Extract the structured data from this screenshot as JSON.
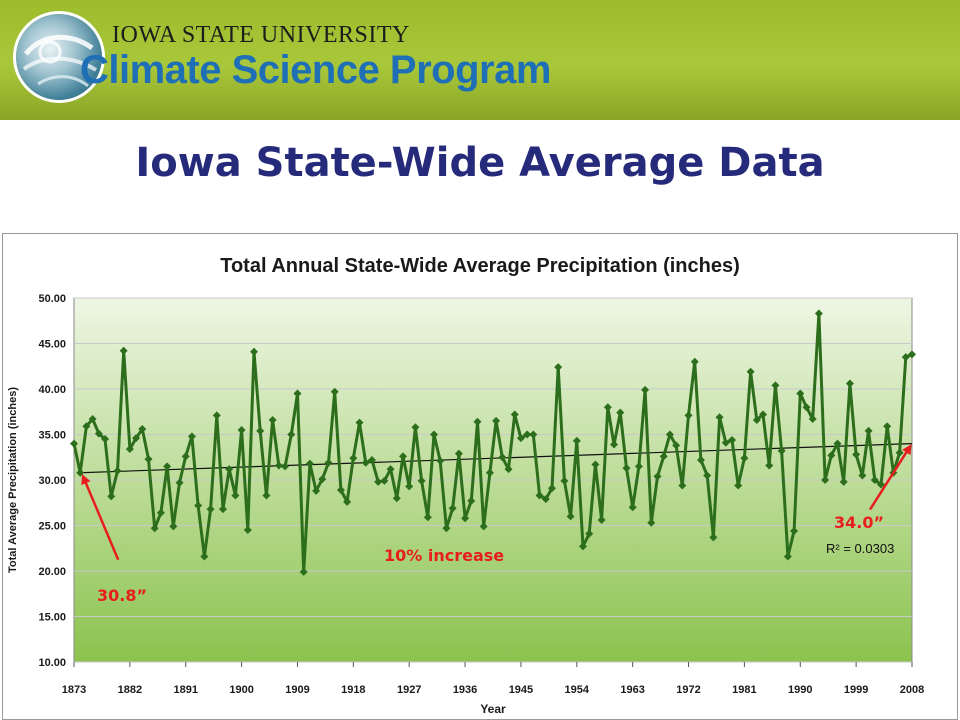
{
  "header": {
    "university": "IOWA STATE UNIVERSITY",
    "program": "Climate Science Program",
    "logo_icon": "globe-swirl-icon"
  },
  "slide": {
    "title": "Iowa State-Wide Average Data"
  },
  "chart_data": {
    "type": "line",
    "title": "Total Annual State-Wide Average Precipitation (inches)",
    "xlabel": "Year",
    "ylabel": "Total Average Precipitation (inches)",
    "xlim": [
      1873,
      2008
    ],
    "ylim": [
      10,
      50
    ],
    "x_ticks": [
      1873,
      1882,
      1891,
      1900,
      1909,
      1918,
      1927,
      1936,
      1945,
      1954,
      1963,
      1972,
      1981,
      1990,
      1999,
      2008
    ],
    "y_ticks": [
      "10.00",
      "15.00",
      "20.00",
      "25.00",
      "30.00",
      "35.00",
      "40.00",
      "45.00",
      "50.00"
    ],
    "grid": "horizontal",
    "legend": "none",
    "colors": {
      "series": "#2d6e1c",
      "trendline": "#111111",
      "annotation": "#e81e1e",
      "plot_top": "#eef6e4",
      "plot_bottom": "#8cc34e"
    },
    "series": [
      {
        "x": [
          1873,
          1874,
          1875,
          1876,
          1877,
          1878,
          1879,
          1880,
          1881,
          1882,
          1883,
          1884,
          1885,
          1886,
          1887,
          1888,
          1889,
          1890,
          1891,
          1892,
          1893,
          1894,
          1895,
          1896,
          1897,
          1898,
          1899,
          1900,
          1901,
          1902,
          1903,
          1904,
          1905,
          1906,
          1907,
          1908,
          1909,
          1910,
          1911,
          1912,
          1913,
          1914,
          1915,
          1916,
          1917,
          1918,
          1919,
          1920,
          1921,
          1922,
          1923,
          1924,
          1925,
          1926,
          1927,
          1928,
          1929,
          1930,
          1931,
          1932,
          1933,
          1934,
          1935,
          1936,
          1937,
          1938,
          1939,
          1940,
          1941,
          1942,
          1943,
          1944,
          1945,
          1946,
          1947,
          1948,
          1949,
          1950,
          1951,
          1952,
          1953,
          1954,
          1955,
          1956,
          1957,
          1958,
          1959,
          1960,
          1961,
          1962,
          1963,
          1964,
          1965,
          1966,
          1967,
          1968,
          1969,
          1970,
          1971,
          1972,
          1973,
          1974,
          1975,
          1976,
          1977,
          1978,
          1979,
          1980,
          1981,
          1982,
          1983,
          1984,
          1985,
          1986,
          1987,
          1988,
          1989,
          1990,
          1991,
          1992,
          1993,
          1994,
          1995,
          1996,
          1997,
          1998,
          1999,
          2000,
          2001,
          2002,
          2003,
          2004,
          2005,
          2006,
          2007,
          2008
        ],
        "values": [
          34.0,
          30.8,
          35.9,
          36.7,
          35.1,
          34.5,
          28.2,
          31.0,
          44.2,
          33.4,
          34.6,
          35.6,
          32.3,
          24.7,
          26.4,
          31.5,
          24.9,
          29.7,
          32.6,
          34.8,
          27.2,
          21.6,
          26.8,
          37.1,
          26.8,
          31.2,
          28.3,
          35.5,
          24.5,
          44.1,
          35.4,
          28.3,
          36.6,
          31.6,
          31.5,
          35.0,
          39.5,
          19.9,
          31.8,
          28.8,
          30.1,
          31.9,
          39.7,
          28.9,
          27.6,
          32.4,
          36.3,
          31.9,
          32.2,
          29.8,
          29.9,
          31.2,
          28.0,
          32.6,
          29.3,
          35.8,
          29.9,
          25.9,
          35.0,
          32.1,
          24.7,
          26.9,
          32.9,
          25.8,
          27.7,
          36.4,
          24.9,
          30.8,
          36.5,
          32.5,
          31.2,
          37.2,
          34.6,
          35.0,
          35.0,
          28.3,
          27.9,
          29.1,
          42.4,
          29.9,
          26.0,
          34.3,
          22.7,
          24.1,
          31.7,
          25.6,
          38.0,
          33.9,
          37.4,
          31.3,
          27.0,
          31.5,
          39.9,
          25.3,
          30.4,
          32.6,
          35.0,
          33.8,
          29.4,
          37.1,
          43.0,
          32.2,
          30.5,
          23.7,
          36.9,
          34.1,
          34.4,
          29.4,
          32.4,
          41.9,
          36.6,
          37.2,
          31.6,
          40.4,
          33.2,
          21.6,
          24.4,
          39.5,
          38.0,
          36.7,
          48.3,
          30.0,
          32.7,
          34.0,
          29.8,
          40.6,
          32.8,
          30.5,
          35.4,
          30.0,
          29.5,
          35.9,
          30.8,
          33.0,
          43.5,
          43.8
        ]
      }
    ],
    "trendline": {
      "x": [
        1874,
        2008
      ],
      "values": [
        30.8,
        34.0
      ]
    },
    "annotations": {
      "start_label": "30.8”",
      "end_label": "34.0”",
      "change_label": "10% increase",
      "r_squared": "R² = 0.0303"
    }
  }
}
